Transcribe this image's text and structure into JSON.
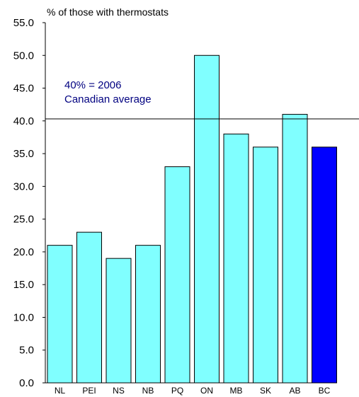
{
  "chart_data": {
    "type": "bar",
    "ylabel": "% of those with thermostats",
    "xlabel": "",
    "categories": [
      "NL",
      "PEI",
      "NS",
      "NB",
      "PQ",
      "ON",
      "MB",
      "SK",
      "AB",
      "BC"
    ],
    "values": [
      21,
      23,
      19,
      21,
      33,
      50,
      38,
      36,
      41,
      36
    ],
    "ylim": [
      0,
      55
    ],
    "yticks": [
      "0.0",
      "5.0",
      "10.0",
      "15.0",
      "20.0",
      "25.0",
      "30.0",
      "35.0",
      "40.0",
      "45.0",
      "50.0",
      "55.0"
    ],
    "reference_line": {
      "value": 40.3,
      "label_line1": "40% = 2006",
      "label_line2": "Canadian average"
    },
    "colors": {
      "default_bar": "#80ffff",
      "highlight_bar": "#0000ff",
      "highlight_category": "BC",
      "annotation": "#000080"
    },
    "grid": false
  }
}
